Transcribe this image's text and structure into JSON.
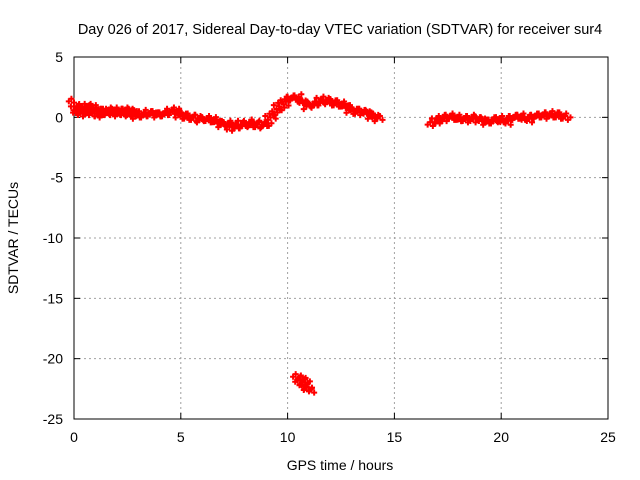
{
  "colors": {
    "series": "#ff0000",
    "grid": "#a0a0a0",
    "axis": "#000000",
    "background": "#ffffff"
  },
  "chart_data": {
    "type": "scatter",
    "title": "Day 026 of 2017, Sidereal Day-to-day VTEC variation (SDTVAR) for receiver sur4",
    "xlabel": "GPS time / hours",
    "ylabel": "SDTVAR / TECUs",
    "xlim": [
      0,
      25
    ],
    "ylim": [
      -25,
      5
    ],
    "xticks": [
      0,
      5,
      10,
      15,
      20,
      25
    ],
    "xtick_labels": [
      "0",
      "5",
      "10",
      "15",
      "20",
      "25"
    ],
    "yticks": [
      -25,
      -20,
      -15,
      -10,
      -5,
      0,
      5
    ],
    "ytick_labels": [
      "-25",
      "-20",
      "-15",
      "-10",
      "-5",
      "0",
      "5"
    ],
    "grid": true,
    "marker": "plus",
    "series": [
      {
        "name": "SDTVAR",
        "x": [
          0.0,
          0.1,
          0.2,
          0.3,
          0.4,
          0.5,
          0.6,
          0.7,
          0.8,
          0.9,
          1.0,
          1.1,
          1.2,
          1.3,
          1.4,
          1.5,
          1.6,
          1.7,
          1.8,
          1.9,
          2.0,
          2.1,
          2.2,
          2.3,
          2.4,
          2.5,
          2.6,
          2.7,
          2.8,
          2.9,
          3.0,
          3.2,
          3.4,
          3.6,
          3.8,
          4.0,
          4.2,
          4.4,
          4.6,
          4.8,
          5.0,
          5.2,
          5.4,
          5.6,
          5.8,
          6.0,
          6.2,
          6.4,
          6.6,
          6.8,
          7.0,
          7.2,
          7.4,
          7.6,
          7.8,
          8.0,
          8.2,
          8.4,
          8.6,
          8.8,
          9.0,
          9.2,
          9.4,
          9.6,
          9.8,
          10.0,
          10.2,
          10.4,
          10.6,
          10.8,
          11.0,
          11.2,
          11.4,
          11.6,
          11.8,
          12.0,
          12.2,
          12.4,
          12.6,
          12.8,
          13.0,
          13.2,
          13.4,
          13.6,
          13.8,
          14.0,
          14.2,
          16.8,
          17.0,
          17.2,
          17.4,
          17.6,
          17.8,
          18.0,
          18.2,
          18.4,
          18.6,
          18.8,
          19.0,
          19.2,
          19.4,
          19.6,
          19.8,
          20.0,
          20.2,
          20.4,
          20.6,
          20.8,
          21.0,
          21.2,
          21.4,
          21.6,
          21.8,
          22.0,
          22.2,
          22.4,
          22.6,
          22.8,
          23.0,
          10.5,
          10.6,
          10.7,
          10.8,
          10.9,
          11.0
        ],
        "y": [
          1.0,
          0.8,
          0.5,
          0.3,
          0.6,
          0.9,
          0.8,
          0.4,
          0.7,
          0.9,
          0.6,
          0.3,
          0.2,
          0.4,
          0.5,
          0.5,
          0.6,
          0.4,
          0.3,
          0.5,
          0.6,
          0.5,
          0.4,
          0.3,
          0.5,
          0.6,
          0.4,
          0.3,
          0.5,
          0.2,
          0.1,
          0.2,
          0.3,
          0.4,
          0.3,
          0.2,
          0.3,
          0.4,
          0.5,
          0.6,
          0.2,
          0.1,
          0.0,
          -0.1,
          0.0,
          -0.2,
          -0.1,
          -0.2,
          -0.3,
          -0.4,
          -0.6,
          -0.5,
          -0.9,
          -0.7,
          -0.5,
          -0.7,
          -0.4,
          -0.6,
          -0.7,
          -0.5,
          -0.6,
          0.0,
          0.4,
          0.8,
          1.2,
          1.5,
          1.6,
          1.7,
          1.4,
          1.2,
          0.9,
          1.1,
          1.2,
          1.4,
          1.5,
          1.3,
          1.2,
          1.1,
          1.0,
          0.9,
          0.6,
          0.5,
          0.4,
          0.5,
          0.3,
          0.1,
          -0.1,
          -0.5,
          -0.3,
          -0.1,
          0.0,
          0.1,
          0.0,
          -0.1,
          -0.2,
          -0.1,
          0.0,
          -0.2,
          -0.1,
          -0.3,
          -0.4,
          -0.3,
          -0.1,
          -0.2,
          -0.4,
          -0.1,
          0.0,
          0.1,
          0.0,
          -0.2,
          0.0,
          0.1,
          0.2,
          0.1,
          0.2,
          0.3,
          0.2,
          0.1,
          0.0,
          -21.5,
          -21.7,
          -21.9,
          -22.1,
          -22.4,
          -22.6
        ]
      }
    ]
  }
}
